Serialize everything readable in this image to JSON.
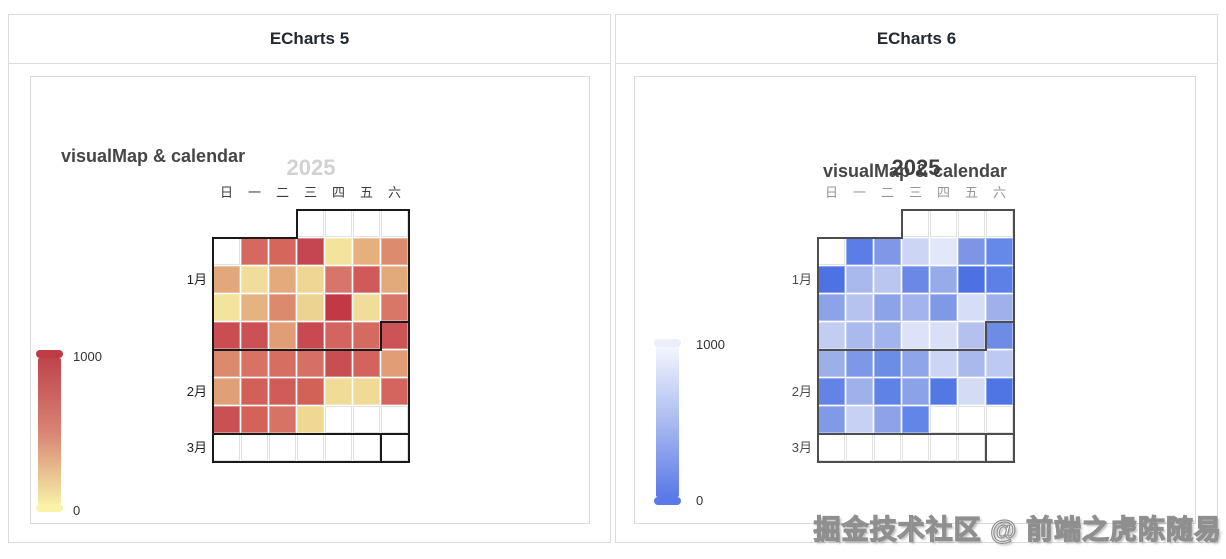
{
  "watermark": "掘金技术社区 @ 前端之虎陈随易",
  "panels": [
    {
      "header": "ECharts 5",
      "chart_title": "visualMap & calendar",
      "year": "2025",
      "weekdays": [
        "日",
        "一",
        "二",
        "三",
        "四",
        "五",
        "六"
      ],
      "month_labels": [
        "1月",
        "2月",
        "3月"
      ],
      "border_color": "#1a1a1a",
      "year_color": "#d2d2d2",
      "weekday_color": "#3c3c3c",
      "month_color": "#1f1f1f",
      "visualmap": {
        "max_label": "1000",
        "min_label": "0",
        "gradient": [
          "#bf444c",
          "#d88273",
          "#f6efa6"
        ],
        "handle_top": "#c13b46",
        "handle_bottom": "#f9f2a7"
      },
      "weeks": [
        [
          "x",
          "x",
          "x",
          "",
          "",
          "",
          ""
        ],
        [
          "",
          "#d5685f",
          "#d4665e",
          "#c54550",
          "#f2e49d",
          "#e5b07c",
          "#dc8b6f"
        ],
        [
          "#e2a77a",
          "#f0dd9a",
          "#e3ab7c",
          "#eed694",
          "#d8756a",
          "#cf5a59",
          "#e2a97b"
        ],
        [
          "#f2e49c",
          "#e5b381",
          "#db8a6e",
          "#ecd392",
          "#c23844",
          "#f0dd9a",
          "#d8766a"
        ],
        [
          "#c94d51",
          "#cb5154",
          "#e09d76",
          "#c8494f",
          "#d3655e",
          "#d56a60",
          "#cc5456"
        ],
        [
          "#db8a6e",
          "#d77265",
          "#d66e63",
          "#d77064",
          "#c94e52",
          "#d3645d",
          "#e09d76"
        ],
        [
          "#e0a077",
          "#d26059",
          "#d05c58",
          "#d26158",
          "#f0db97",
          "#efda96",
          "#d4655e"
        ],
        [
          "#ca5153",
          "#d36359",
          "#d77366",
          "#efd892",
          "",
          "",
          ""
        ],
        [
          "",
          "",
          "",
          "",
          "",
          "",
          ""
        ]
      ]
    },
    {
      "header": "ECharts 6",
      "chart_title": "visualMap & calendar",
      "year": "2025",
      "weekdays": [
        "日",
        "一",
        "二",
        "三",
        "四",
        "五",
        "六"
      ],
      "month_labels": [
        "1月",
        "2月",
        "3月"
      ],
      "border_color": "#4d4d4d",
      "year_color": "#3f3f3f",
      "weekday_color": "#969696",
      "month_color": "#4d4d4d",
      "visualmap": {
        "max_label": "1000",
        "min_label": "0",
        "gradient": [
          "#f3f6fe",
          "#a9bbf0",
          "#5b79e8"
        ],
        "handle_top": "#eceff9",
        "handle_bottom": "#5b79e8"
      },
      "weeks": [
        [
          "x",
          "x",
          "x",
          "",
          "",
          "",
          ""
        ],
        [
          "",
          "#5b7de8",
          "#7f97e6",
          "#ccd5f4",
          "#e2e7f9",
          "#7e95e6",
          "#6589e8"
        ],
        [
          "#4e71e4",
          "#a9b8ee",
          "#bac6f0",
          "#6a89e6",
          "#97abea",
          "#4d70e2",
          "#5d80e6"
        ],
        [
          "#8da3e8",
          "#b7c3ef",
          "#8da3e8",
          "#a3b3ec",
          "#8099e6",
          "#d6ddf6",
          "#9fb1eb"
        ],
        [
          "#c3cdf1",
          "#aab9ee",
          "#a3b3ec",
          "#dce2f8",
          "#d9dff7",
          "#b4c1ef",
          "#6e8ce6"
        ],
        [
          "#9cafe9",
          "#7e97e6",
          "#6d8ce6",
          "#8fa5e9",
          "#ccd5f3",
          "#a9b8ed",
          "#bdc9f1"
        ],
        [
          "#6384e4",
          "#9fb1ea",
          "#5f82e6",
          "#8ca2e8",
          "#5378e4",
          "#d3dbf5",
          "#4f75e4"
        ],
        [
          "#8299e7",
          "#c7d1f3",
          "#8da2e8",
          "#6285e8",
          "",
          "",
          ""
        ],
        [
          "",
          "",
          "",
          "",
          "",
          "",
          ""
        ]
      ]
    }
  ],
  "chart_data": [
    {
      "type": "heatmap",
      "variant": "calendar",
      "title": "visualMap & calendar",
      "renderer": "ECharts 5",
      "calendar_range": [
        "2025-01-01",
        "2025-03-01"
      ],
      "data_range": [
        "2025-01-06",
        "2025-02-19"
      ],
      "value_range": [
        0,
        1000
      ],
      "visualmap": {
        "min": 0,
        "max": 1000,
        "orient": "vertical",
        "position": "left",
        "high_color": "#bf444c",
        "low_color": "#f6efa6"
      },
      "weekday_order": [
        "日",
        "一",
        "二",
        "三",
        "四",
        "五",
        "六"
      ],
      "weeks_values": [
        [
          null,
          null,
          null,
          null,
          null,
          null,
          null
        ],
        [
          null,
          640,
          630,
          930,
          110,
          340,
          480
        ],
        [
          370,
          150,
          350,
          210,
          570,
          750,
          360
        ],
        [
          120,
          330,
          490,
          230,
          980,
          150,
          560
        ],
        [
          860,
          830,
          420,
          890,
          640,
          620,
          800
        ],
        [
          490,
          590,
          610,
          600,
          850,
          650,
          420
        ],
        [
          400,
          710,
          740,
          700,
          130,
          140,
          640
        ],
        [
          830,
          680,
          570,
          180,
          null,
          null,
          null
        ],
        [
          null,
          null,
          null,
          null,
          null,
          null,
          null
        ]
      ]
    },
    {
      "type": "heatmap",
      "variant": "calendar",
      "title": "visualMap & calendar",
      "renderer": "ECharts 6",
      "calendar_range": [
        "2025-01-01",
        "2025-03-01"
      ],
      "data_range": [
        "2025-01-06",
        "2025-02-19"
      ],
      "value_range": [
        0,
        1000
      ],
      "visualmap": {
        "min": 0,
        "max": 1000,
        "orient": "vertical",
        "position": "left",
        "high_color": "#f3f6fe",
        "low_color": "#5b79e8"
      },
      "weekday_order": [
        "日",
        "一",
        "二",
        "三",
        "四",
        "五",
        "六"
      ],
      "weeks_values": [
        [
          null,
          null,
          null,
          null,
          null,
          null,
          null
        ],
        [
          null,
          130,
          330,
          730,
          880,
          350,
          270
        ],
        [
          90,
          560,
          640,
          280,
          460,
          70,
          190
        ],
        [
          410,
          630,
          410,
          540,
          380,
          850,
          520
        ],
        [
          680,
          570,
          540,
          890,
          870,
          640,
          260
        ],
        [
          510,
          360,
          250,
          440,
          780,
          560,
          690
        ],
        [
          190,
          530,
          170,
          420,
          100,
          840,
          80
        ],
        [
          390,
          800,
          410,
          210,
          null,
          null,
          null
        ],
        [
          null,
          null,
          null,
          null,
          null,
          null,
          null
        ]
      ]
    }
  ]
}
